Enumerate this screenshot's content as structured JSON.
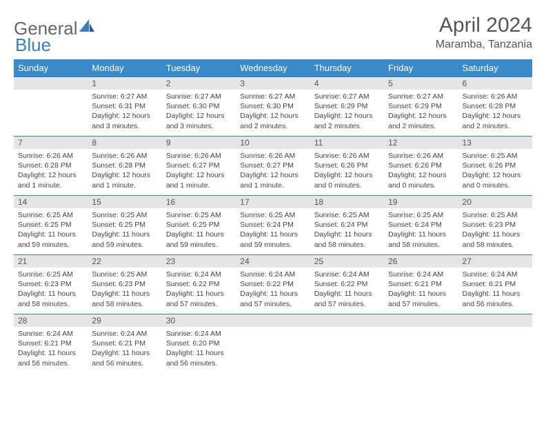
{
  "logo": {
    "part1": "General",
    "part2": "Blue"
  },
  "title": "April 2024",
  "location": "Maramba, Tanzania",
  "colors": {
    "header_bg": "#3a8ac9",
    "header_text": "#ffffff",
    "daynum_bg": "#e5e5e5",
    "border": "#3a7ebf",
    "text": "#444444",
    "logo_blue": "#3a7ebf"
  },
  "weekdays": [
    "Sunday",
    "Monday",
    "Tuesday",
    "Wednesday",
    "Thursday",
    "Friday",
    "Saturday"
  ],
  "weeks": [
    [
      {
        "num": "",
        "sunrise": "",
        "sunset": "",
        "daylight": ""
      },
      {
        "num": "1",
        "sunrise": "Sunrise: 6:27 AM",
        "sunset": "Sunset: 6:31 PM",
        "daylight": "Daylight: 12 hours and 3 minutes."
      },
      {
        "num": "2",
        "sunrise": "Sunrise: 6:27 AM",
        "sunset": "Sunset: 6:30 PM",
        "daylight": "Daylight: 12 hours and 3 minutes."
      },
      {
        "num": "3",
        "sunrise": "Sunrise: 6:27 AM",
        "sunset": "Sunset: 6:30 PM",
        "daylight": "Daylight: 12 hours and 2 minutes."
      },
      {
        "num": "4",
        "sunrise": "Sunrise: 6:27 AM",
        "sunset": "Sunset: 6:29 PM",
        "daylight": "Daylight: 12 hours and 2 minutes."
      },
      {
        "num": "5",
        "sunrise": "Sunrise: 6:27 AM",
        "sunset": "Sunset: 6:29 PM",
        "daylight": "Daylight: 12 hours and 2 minutes."
      },
      {
        "num": "6",
        "sunrise": "Sunrise: 6:26 AM",
        "sunset": "Sunset: 6:28 PM",
        "daylight": "Daylight: 12 hours and 2 minutes."
      }
    ],
    [
      {
        "num": "7",
        "sunrise": "Sunrise: 6:26 AM",
        "sunset": "Sunset: 6:28 PM",
        "daylight": "Daylight: 12 hours and 1 minute."
      },
      {
        "num": "8",
        "sunrise": "Sunrise: 6:26 AM",
        "sunset": "Sunset: 6:28 PM",
        "daylight": "Daylight: 12 hours and 1 minute."
      },
      {
        "num": "9",
        "sunrise": "Sunrise: 6:26 AM",
        "sunset": "Sunset: 6:27 PM",
        "daylight": "Daylight: 12 hours and 1 minute."
      },
      {
        "num": "10",
        "sunrise": "Sunrise: 6:26 AM",
        "sunset": "Sunset: 6:27 PM",
        "daylight": "Daylight: 12 hours and 1 minute."
      },
      {
        "num": "11",
        "sunrise": "Sunrise: 6:26 AM",
        "sunset": "Sunset: 6:26 PM",
        "daylight": "Daylight: 12 hours and 0 minutes."
      },
      {
        "num": "12",
        "sunrise": "Sunrise: 6:26 AM",
        "sunset": "Sunset: 6:26 PM",
        "daylight": "Daylight: 12 hours and 0 minutes."
      },
      {
        "num": "13",
        "sunrise": "Sunrise: 6:25 AM",
        "sunset": "Sunset: 6:26 PM",
        "daylight": "Daylight: 12 hours and 0 minutes."
      }
    ],
    [
      {
        "num": "14",
        "sunrise": "Sunrise: 6:25 AM",
        "sunset": "Sunset: 6:25 PM",
        "daylight": "Daylight: 11 hours and 59 minutes."
      },
      {
        "num": "15",
        "sunrise": "Sunrise: 6:25 AM",
        "sunset": "Sunset: 6:25 PM",
        "daylight": "Daylight: 11 hours and 59 minutes."
      },
      {
        "num": "16",
        "sunrise": "Sunrise: 6:25 AM",
        "sunset": "Sunset: 6:25 PM",
        "daylight": "Daylight: 11 hours and 59 minutes."
      },
      {
        "num": "17",
        "sunrise": "Sunrise: 6:25 AM",
        "sunset": "Sunset: 6:24 PM",
        "daylight": "Daylight: 11 hours and 59 minutes."
      },
      {
        "num": "18",
        "sunrise": "Sunrise: 6:25 AM",
        "sunset": "Sunset: 6:24 PM",
        "daylight": "Daylight: 11 hours and 58 minutes."
      },
      {
        "num": "19",
        "sunrise": "Sunrise: 6:25 AM",
        "sunset": "Sunset: 6:24 PM",
        "daylight": "Daylight: 11 hours and 58 minutes."
      },
      {
        "num": "20",
        "sunrise": "Sunrise: 6:25 AM",
        "sunset": "Sunset: 6:23 PM",
        "daylight": "Daylight: 11 hours and 58 minutes."
      }
    ],
    [
      {
        "num": "21",
        "sunrise": "Sunrise: 6:25 AM",
        "sunset": "Sunset: 6:23 PM",
        "daylight": "Daylight: 11 hours and 58 minutes."
      },
      {
        "num": "22",
        "sunrise": "Sunrise: 6:25 AM",
        "sunset": "Sunset: 6:23 PM",
        "daylight": "Daylight: 11 hours and 58 minutes."
      },
      {
        "num": "23",
        "sunrise": "Sunrise: 6:24 AM",
        "sunset": "Sunset: 6:22 PM",
        "daylight": "Daylight: 11 hours and 57 minutes."
      },
      {
        "num": "24",
        "sunrise": "Sunrise: 6:24 AM",
        "sunset": "Sunset: 6:22 PM",
        "daylight": "Daylight: 11 hours and 57 minutes."
      },
      {
        "num": "25",
        "sunrise": "Sunrise: 6:24 AM",
        "sunset": "Sunset: 6:22 PM",
        "daylight": "Daylight: 11 hours and 57 minutes."
      },
      {
        "num": "26",
        "sunrise": "Sunrise: 6:24 AM",
        "sunset": "Sunset: 6:21 PM",
        "daylight": "Daylight: 11 hours and 57 minutes."
      },
      {
        "num": "27",
        "sunrise": "Sunrise: 6:24 AM",
        "sunset": "Sunset: 6:21 PM",
        "daylight": "Daylight: 11 hours and 56 minutes."
      }
    ],
    [
      {
        "num": "28",
        "sunrise": "Sunrise: 6:24 AM",
        "sunset": "Sunset: 6:21 PM",
        "daylight": "Daylight: 11 hours and 56 minutes."
      },
      {
        "num": "29",
        "sunrise": "Sunrise: 6:24 AM",
        "sunset": "Sunset: 6:21 PM",
        "daylight": "Daylight: 11 hours and 56 minutes."
      },
      {
        "num": "30",
        "sunrise": "Sunrise: 6:24 AM",
        "sunset": "Sunset: 6:20 PM",
        "daylight": "Daylight: 11 hours and 56 minutes."
      },
      {
        "num": "",
        "sunrise": "",
        "sunset": "",
        "daylight": ""
      },
      {
        "num": "",
        "sunrise": "",
        "sunset": "",
        "daylight": ""
      },
      {
        "num": "",
        "sunrise": "",
        "sunset": "",
        "daylight": ""
      },
      {
        "num": "",
        "sunrise": "",
        "sunset": "",
        "daylight": ""
      }
    ]
  ]
}
